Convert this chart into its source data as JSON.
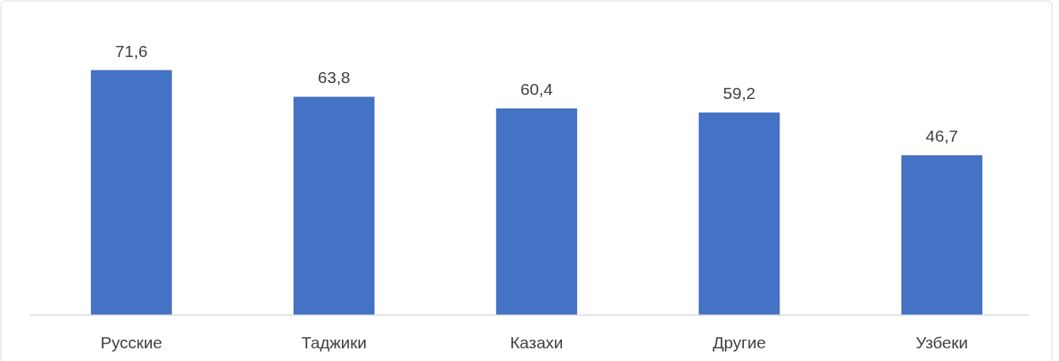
{
  "chart_data": {
    "type": "bar",
    "relative": false,
    "categories": [
      "Русские",
      "Таджики",
      "Казахи",
      "Другие",
      "Узбеки"
    ],
    "values": [
      71.6,
      63.8,
      60.4,
      59.2,
      46.7
    ],
    "value_labels": [
      "71,6",
      "63,8",
      "60,4",
      "59,2",
      "46,7"
    ],
    "color": "#4472c4"
  }
}
